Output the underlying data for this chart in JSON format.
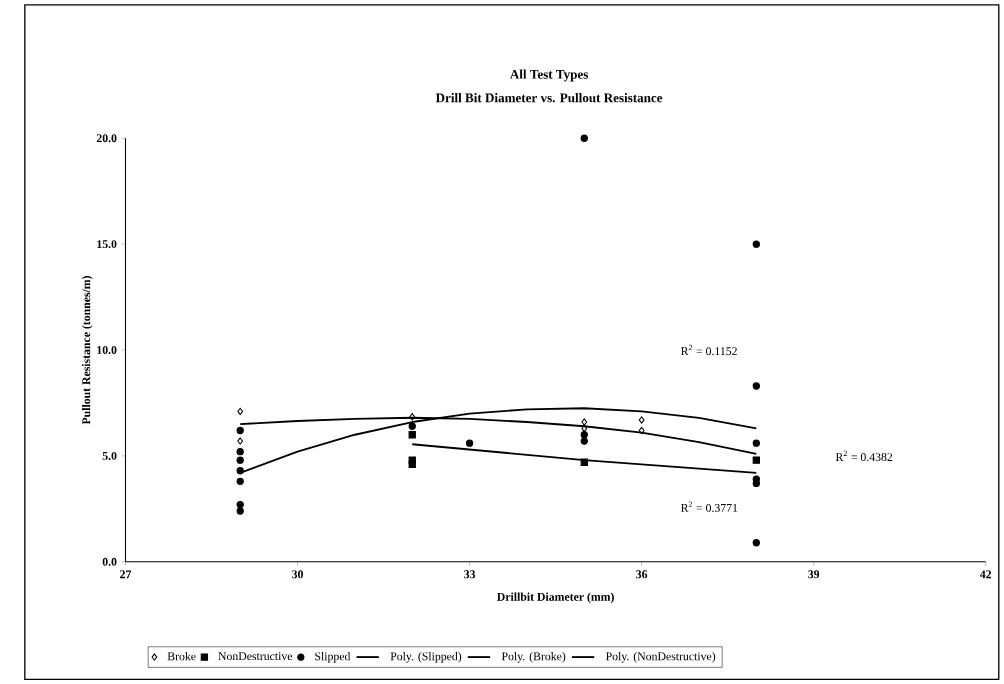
{
  "chart_data": {
    "type": "scatter",
    "title": "All Test Types",
    "subtitle": "Drill Bit Diameter vs. Pullout Resistance",
    "xlabel": "Drillbit Diameter (mm)",
    "ylabel": "Pullout Resistance (tonnes/m)",
    "xlim": [
      27,
      42
    ],
    "xticks": [
      27,
      30,
      33,
      36,
      39,
      42
    ],
    "ylim": [
      0,
      20
    ],
    "yticks": [
      {
        "value": 0,
        "label": "0.0"
      },
      {
        "value": 5,
        "label": "5.0"
      },
      {
        "value": 10,
        "label": "10.0"
      },
      {
        "value": 15,
        "label": "15.0"
      },
      {
        "value": 20,
        "label": "20.0"
      }
    ],
    "grid": false,
    "legend": "bottom",
    "series": [
      {
        "name": "Broke",
        "marker": "diamond",
        "color": "#000000",
        "x": [
          29,
          29,
          32,
          35,
          35,
          36,
          36
        ],
        "values": [
          7.1,
          5.7,
          6.85,
          6.6,
          6.3,
          6.7,
          6.2
        ]
      },
      {
        "name": "NonDestructive",
        "marker": "square",
        "color": "#000000",
        "x": [
          32,
          32,
          32,
          35,
          38
        ],
        "values": [
          6.0,
          4.8,
          4.6,
          4.7,
          4.8
        ]
      },
      {
        "name": "Slipped",
        "marker": "circle",
        "color": "#000000",
        "x": [
          29,
          29,
          29,
          29,
          29,
          29,
          29,
          32,
          33,
          35,
          35,
          35,
          38,
          38,
          38,
          38,
          38,
          38
        ],
        "values": [
          6.2,
          5.2,
          4.8,
          4.3,
          3.8,
          2.7,
          2.4,
          6.4,
          5.6,
          20.0,
          6.0,
          5.7,
          15.0,
          8.3,
          5.6,
          3.9,
          3.7,
          0.9
        ]
      },
      {
        "name": "Poly. (Slipped)",
        "type": "line",
        "marker": "none",
        "color": "#000000",
        "x": [
          29,
          30,
          31,
          32,
          33,
          34,
          35,
          36,
          37,
          38
        ],
        "values": [
          4.2,
          5.2,
          6.0,
          6.6,
          7.0,
          7.2,
          7.25,
          7.1,
          6.8,
          6.3
        ]
      },
      {
        "name": "Poly. (Broke)",
        "type": "line",
        "marker": "none",
        "color": "#000000",
        "x": [
          29,
          30,
          31,
          32,
          33,
          34,
          35,
          36,
          37,
          38
        ],
        "values": [
          6.5,
          6.65,
          6.75,
          6.8,
          6.75,
          6.6,
          6.4,
          6.1,
          5.65,
          5.1
        ]
      },
      {
        "name": "Poly. (NonDestructive)",
        "type": "line",
        "marker": "none",
        "color": "#000000",
        "x": [
          32,
          33,
          34,
          35,
          36,
          37,
          38
        ],
        "values": [
          5.55,
          5.3,
          5.05,
          4.8,
          4.6,
          4.4,
          4.2
        ]
      }
    ],
    "annotations": [
      "R$^{2}$ = 0.1152",
      "R$^{2}$ = 0.4382",
      "R$^{2}$ = 0.3771"
    ]
  }
}
